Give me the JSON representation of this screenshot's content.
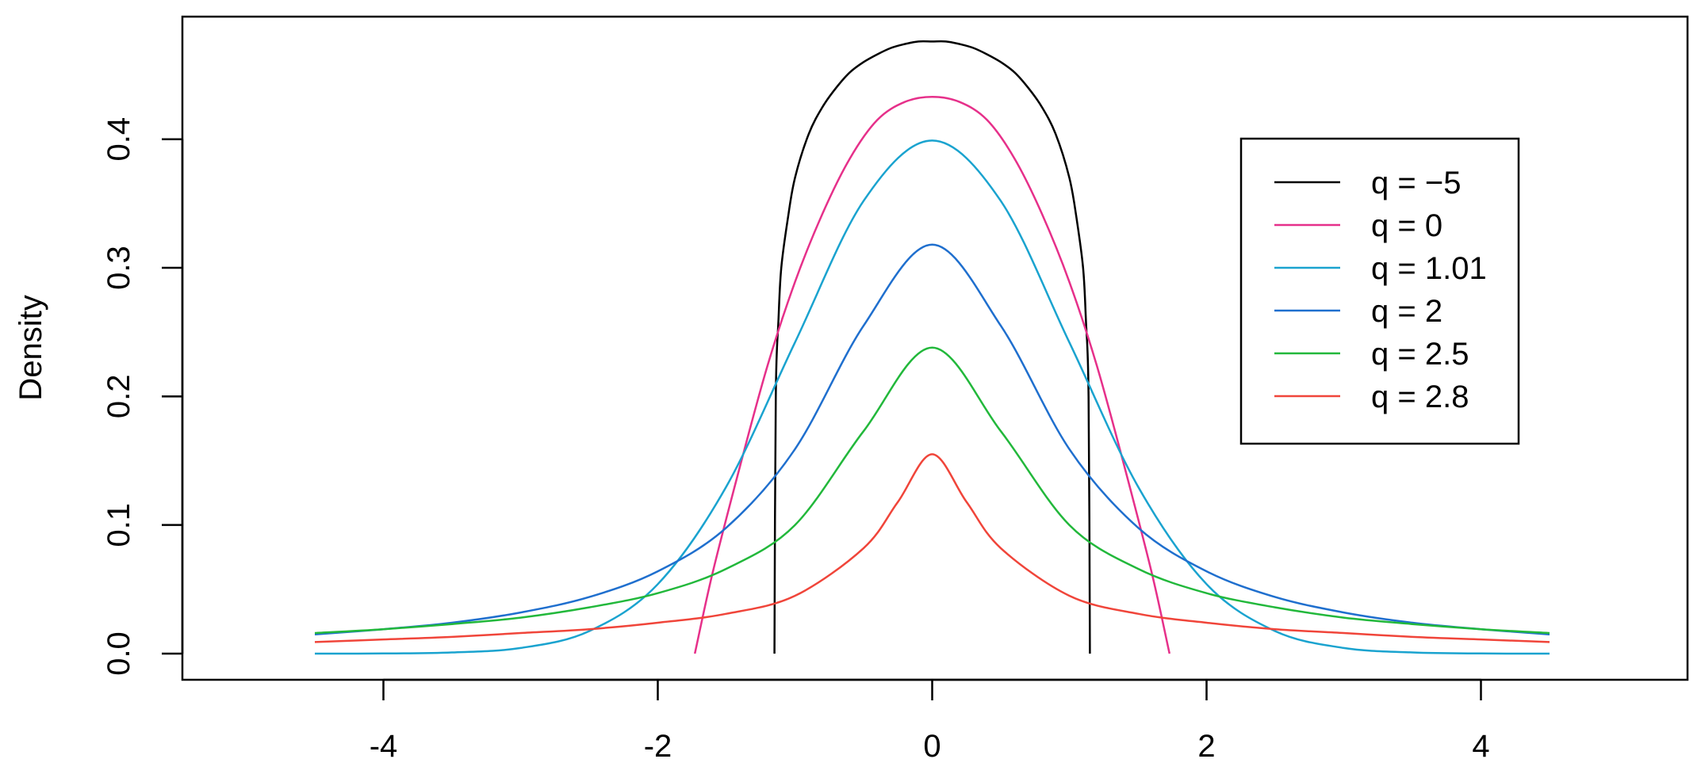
{
  "chart_data": {
    "type": "line",
    "title": "",
    "xlabel": "",
    "ylabel": "Density",
    "xlim": [
      -4.5,
      4.5
    ],
    "ylim": [
      0,
      0.475
    ],
    "x_ticks": [
      {
        "value": -4,
        "label": "-4"
      },
      {
        "value": -2,
        "label": "-2"
      },
      {
        "value": 0,
        "label": "0"
      },
      {
        "value": 2,
        "label": "2"
      },
      {
        "value": 4,
        "label": "4"
      }
    ],
    "y_ticks": [
      {
        "value": 0.0,
        "label": "0.0"
      },
      {
        "value": 0.1,
        "label": "0.1"
      },
      {
        "value": 0.2,
        "label": "0.2"
      },
      {
        "value": 0.3,
        "label": "0.3"
      },
      {
        "value": 0.4,
        "label": "0.4"
      }
    ],
    "grid": false,
    "legend_position": "top-right",
    "series": [
      {
        "name": "q = −5",
        "color": "#000000",
        "x": [
          -1.15,
          -1.14,
          -1.12,
          -1.1,
          -1.05,
          -1.0,
          -0.9,
          -0.8,
          -0.7,
          -0.6,
          -0.5,
          -0.4,
          -0.3,
          -0.2,
          -0.1,
          0,
          0.1,
          0.2,
          0.3,
          0.4,
          0.5,
          0.6,
          0.7,
          0.8,
          0.9,
          1.0,
          1.05,
          1.1,
          1.12,
          1.14,
          1.15
        ],
        "y": [
          0.0,
          0.2,
          0.26,
          0.3,
          0.34,
          0.37,
          0.404,
          0.425,
          0.44,
          0.452,
          0.46,
          0.466,
          0.471,
          0.474,
          0.476,
          0.476,
          0.476,
          0.474,
          0.471,
          0.466,
          0.46,
          0.452,
          0.44,
          0.425,
          0.404,
          0.37,
          0.34,
          0.3,
          0.26,
          0.2,
          0.0
        ]
      },
      {
        "name": "q = 0",
        "color": "#e6308a",
        "x": [
          -1.73,
          -1.6,
          -1.4,
          -1.2,
          -1.0,
          -0.8,
          -0.6,
          -0.4,
          -0.2,
          0,
          0.2,
          0.4,
          0.6,
          0.8,
          1.0,
          1.2,
          1.4,
          1.6,
          1.73
        ],
        "y": [
          0.0,
          0.063,
          0.146,
          0.224,
          0.289,
          0.342,
          0.385,
          0.415,
          0.429,
          0.433,
          0.429,
          0.415,
          0.385,
          0.342,
          0.289,
          0.224,
          0.146,
          0.063,
          0.0
        ]
      },
      {
        "name": "q = 1.01",
        "color": "#1aa3cf",
        "x": [
          -4.5,
          -4.0,
          -3.5,
          -3.0,
          -2.5,
          -2.0,
          -1.5,
          -1.0,
          -0.5,
          0,
          0.5,
          1.0,
          1.5,
          2.0,
          2.5,
          3.0,
          3.5,
          4.0,
          4.5
        ],
        "y": [
          0.0,
          0.0001,
          0.0009,
          0.0044,
          0.0175,
          0.054,
          0.13,
          0.242,
          0.352,
          0.399,
          0.352,
          0.242,
          0.13,
          0.054,
          0.0175,
          0.0044,
          0.0009,
          0.0001,
          0.0
        ]
      },
      {
        "name": "q = 2",
        "color": "#1f6fce",
        "x": [
          -4.5,
          -4.0,
          -3.5,
          -3.0,
          -2.5,
          -2.0,
          -1.5,
          -1.0,
          -0.5,
          0,
          0.5,
          1.0,
          1.5,
          2.0,
          2.5,
          3.0,
          3.5,
          4.0,
          4.5
        ],
        "y": [
          0.015,
          0.019,
          0.024,
          0.032,
          0.044,
          0.064,
          0.098,
          0.159,
          0.255,
          0.318,
          0.255,
          0.159,
          0.098,
          0.064,
          0.044,
          0.032,
          0.024,
          0.019,
          0.015
        ]
      },
      {
        "name": "q = 2.5",
        "color": "#22b83b",
        "x": [
          -4.5,
          -4.0,
          -3.5,
          -3.0,
          -2.5,
          -2.0,
          -1.5,
          -1.0,
          -0.5,
          0,
          0.5,
          1.0,
          1.5,
          2.0,
          2.5,
          3.0,
          3.5,
          4.0,
          4.5
        ],
        "y": [
          0.016,
          0.019,
          0.023,
          0.028,
          0.036,
          0.047,
          0.066,
          0.1,
          0.173,
          0.238,
          0.173,
          0.1,
          0.066,
          0.047,
          0.036,
          0.028,
          0.023,
          0.019,
          0.016
        ]
      },
      {
        "name": "q = 2.8",
        "color": "#f0453a",
        "x": [
          -4.5,
          -4.0,
          -3.5,
          -3.0,
          -2.5,
          -2.0,
          -1.5,
          -1.0,
          -0.5,
          -0.25,
          0,
          0.25,
          0.5,
          1.0,
          1.5,
          2.0,
          2.5,
          3.0,
          3.5,
          4.0,
          4.5
        ],
        "y": [
          0.009,
          0.011,
          0.013,
          0.016,
          0.019,
          0.024,
          0.031,
          0.045,
          0.082,
          0.118,
          0.155,
          0.118,
          0.082,
          0.045,
          0.031,
          0.024,
          0.019,
          0.016,
          0.013,
          0.011,
          0.009
        ]
      }
    ]
  }
}
